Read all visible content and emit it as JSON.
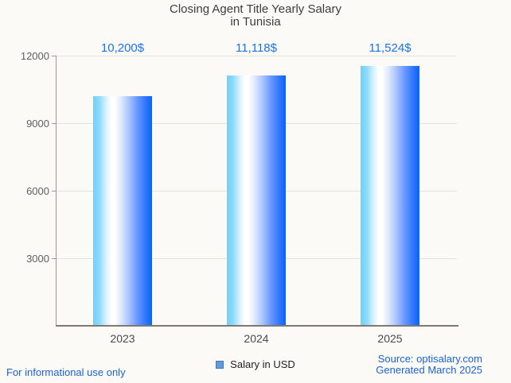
{
  "title": {
    "line1": "Closing Agent Title Yearly Salary",
    "line2": "in Tunisia"
  },
  "chart_data": {
    "type": "bar",
    "title": "Closing Agent Title Yearly Salary in Tunisia",
    "categories": [
      "2023",
      "2024",
      "2025"
    ],
    "values": [
      10200,
      11118,
      11524
    ],
    "value_labels": [
      "10,200$",
      "11,118$",
      "11,524$"
    ],
    "series": [
      {
        "name": "Salary in USD",
        "values": [
          10200,
          11118,
          11524
        ]
      }
    ],
    "xlabel": "",
    "ylabel": "",
    "ylim": [
      0,
      12000
    ],
    "yticks": [
      3000,
      6000,
      9000,
      12000
    ],
    "grid": true,
    "legend_position": "bottom",
    "value_label_color": "#1a73e8",
    "bar_gradient": [
      "#73cff8",
      "#ffffff",
      "#0b63fa"
    ]
  },
  "legend": {
    "label": "Salary in USD",
    "swatch_color": "#5e9cdb"
  },
  "footer": {
    "left": "For informational use only",
    "source_line": "Source: optisalary.com",
    "generated_line": "Generated March 2025",
    "link_color": "#1a62d6"
  }
}
